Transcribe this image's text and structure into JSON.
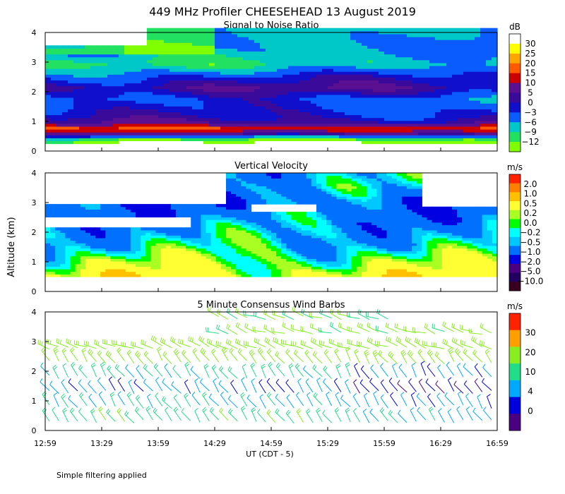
{
  "figure": {
    "title": "449 MHz Profiler CHEESEHEAD 13 August 2019",
    "ylabel": "Altitude (km)",
    "xlabel": "UT  (CDT - 5)",
    "note": "Simple filtering applied"
  },
  "colors": {
    "snr": [
      "#7fff00",
      "#22e060",
      "#00c8c8",
      "#0a5cff",
      "#1010cc",
      "#3a0a9a",
      "#5a1090",
      "#cc0000",
      "#ff5a00",
      "#ffa500",
      "#ffff00",
      "#ffffff"
    ],
    "vv": [
      "#3a0020",
      "#200060",
      "#4b0082",
      "#0000e0",
      "#0070ff",
      "#00c8ff",
      "#00ffff",
      "#00ff00",
      "#aaff22",
      "#ffff33",
      "#ffc000",
      "#ff7f00",
      "#ff2200"
    ],
    "wind": [
      "#4b0082",
      "#0000dd",
      "#00aaff",
      "#22dd88",
      "#88ee22",
      "#ffa000",
      "#ff2200"
    ]
  },
  "chart_data": [
    {
      "type": "heatmap",
      "title": "Signal to Noise Ratio",
      "x": [
        "12:59",
        "13:29",
        "13:59",
        "14:29",
        "14:59",
        "15:29",
        "15:59",
        "16:29",
        "16:59"
      ],
      "xlim": [
        "12:59",
        "16:59"
      ],
      "ylim": [
        0,
        4
      ],
      "yticks": [
        "0",
        "1",
        "2",
        "3",
        "4"
      ],
      "colorbar_unit": "dB",
      "colorbar_labels": [
        "30",
        "25",
        "20",
        "15",
        "10",
        "5",
        "0",
        "−3",
        "−6",
        "−9",
        "−12"
      ],
      "grid": false,
      "profile": {
        "altitude_km": [
          0.3,
          0.6,
          0.75,
          0.9,
          1.1,
          1.4,
          1.7,
          2.1,
          2.5,
          2.9,
          3.3,
          3.7,
          4.0
        ],
        "snr_db": [
          -12,
          10,
          15,
          5,
          2,
          0,
          -1,
          4,
          0,
          -6,
          -3,
          -2,
          -3
        ]
      }
    },
    {
      "type": "heatmap",
      "title": "Vertical Velocity",
      "x": [
        "12:59",
        "13:29",
        "13:59",
        "14:29",
        "14:59",
        "15:29",
        "15:59",
        "16:29",
        "16:59"
      ],
      "xlim": [
        "12:59",
        "16:59"
      ],
      "ylim": [
        0,
        4
      ],
      "yticks": [
        "0",
        "1",
        "2",
        "3",
        "4"
      ],
      "colorbar_unit": "m/s",
      "colorbar_labels": [
        "2.0",
        "1.0",
        "0.5",
        "0.2",
        "0.0",
        "−0.2",
        "−0.5",
        "−1.0",
        "−2.0",
        "−5.0",
        "−10.0"
      ],
      "grid": false,
      "profile": {
        "altitude_km": [
          0.5,
          1.0,
          1.5,
          2.0,
          2.5,
          3.0,
          3.5,
          4.0
        ],
        "w_ms": [
          0.3,
          0.1,
          -0.1,
          -0.2,
          -0.3,
          -0.4,
          -0.2,
          -0.2
        ]
      }
    },
    {
      "type": "scatter",
      "title": "5 Minute Consensus Wind Barbs",
      "x": [
        "12:59",
        "13:29",
        "13:59",
        "14:29",
        "14:59",
        "15:29",
        "15:59",
        "16:29",
        "16:59"
      ],
      "xlim": [
        "12:59",
        "16:59"
      ],
      "ylim": [
        0,
        4
      ],
      "yticks": [
        "0",
        "1",
        "2",
        "3",
        "4"
      ],
      "colorbar_unit": "m/s",
      "colorbar_labels": [
        "30",
        "20",
        "10",
        "4",
        "0"
      ],
      "grid": false,
      "profile": {
        "altitude_km": [
          0.3,
          0.8,
          1.3,
          1.8,
          2.3,
          2.8,
          3.3,
          3.8
        ],
        "speed_ms": [
          9,
          7,
          5,
          8,
          12,
          15,
          11,
          10
        ]
      }
    }
  ]
}
